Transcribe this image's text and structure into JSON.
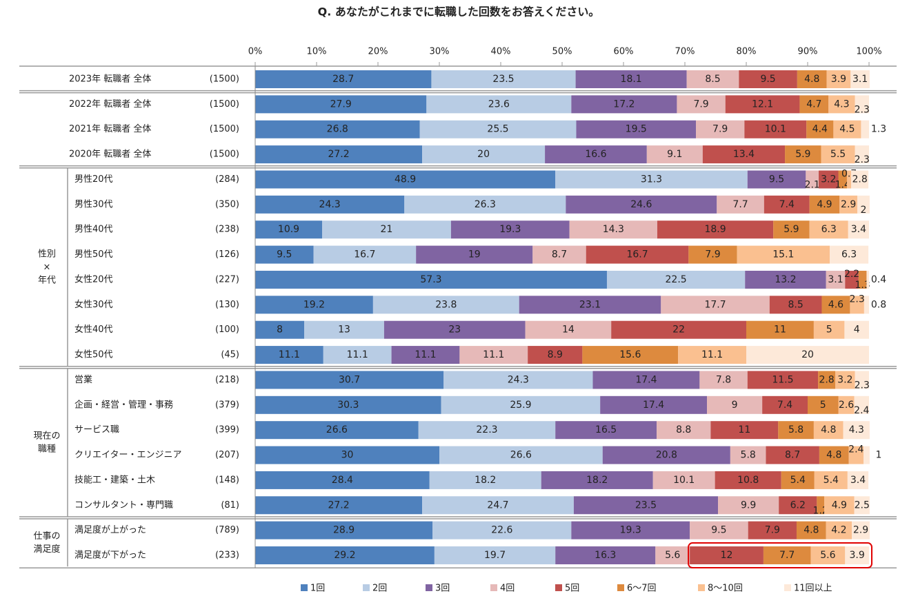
{
  "chart_data": {
    "type": "bar",
    "orientation": "horizontal",
    "stacked": true,
    "title": "Q.  あなたがこれまでに転職した回数をお答えください。",
    "xlim": [
      0,
      100
    ],
    "xticks": [
      {
        "value": 0,
        "label": "0%"
      },
      {
        "value": 10,
        "label": "10%"
      },
      {
        "value": 20,
        "label": "20%"
      },
      {
        "value": 30,
        "label": "30%"
      },
      {
        "value": 40,
        "label": "40%"
      },
      {
        "value": 50,
        "label": "50%"
      },
      {
        "value": 60,
        "label": "60%"
      },
      {
        "value": 70,
        "label": "70%"
      },
      {
        "value": 80,
        "label": "80%"
      },
      {
        "value": 90,
        "label": "90%"
      },
      {
        "value": 100,
        "label": "100%"
      }
    ],
    "groups": [
      {
        "label": null,
        "categories": [
          "2023年 転職者 全体"
        ],
        "n": [
          "(1500)"
        ]
      },
      {
        "label": null,
        "categories": [
          "2022年 転職者 全体",
          "2021年 転職者 全体",
          "2020年 転職者 全体"
        ],
        "n": [
          "(1500)",
          "(1500)",
          "(1500)"
        ]
      },
      {
        "label": [
          "性別",
          "×",
          "年代"
        ],
        "categories": [
          "男性20代",
          "男性30代",
          "男性40代",
          "男性50代",
          "女性20代",
          "女性30代",
          "女性40代",
          "女性50代"
        ],
        "n": [
          "(284)",
          "(350)",
          "(238)",
          "(126)",
          "(227)",
          "(130)",
          "(100)",
          "(45)"
        ]
      },
      {
        "label": [
          "現在の",
          "職種"
        ],
        "categories": [
          "営業",
          "企画・経営・管理・事務",
          "サービス職",
          "クリエイター・エンジニア",
          "技能工・建築・土木",
          "コンサルタント・専門職"
        ],
        "n": [
          "(218)",
          "(379)",
          "(399)",
          "(207)",
          "(148)",
          "(81)"
        ]
      },
      {
        "label": [
          "仕事の",
          "満足度"
        ],
        "categories": [
          "満足度が上がった",
          "満足度が下がった"
        ],
        "n": [
          "(789)",
          "(233)"
        ]
      }
    ],
    "series": [
      {
        "name": "1回",
        "color": "#4f81bd",
        "values": [
          [
            28.7
          ],
          [
            27.9,
            26.8,
            27.2
          ],
          [
            48.9,
            24.3,
            10.9,
            9.5,
            57.3,
            19.2,
            8.0,
            11.1
          ],
          [
            30.7,
            30.3,
            26.6,
            30.0,
            28.4,
            27.2
          ],
          [
            28.9,
            29.2
          ]
        ]
      },
      {
        "name": "2回",
        "color": "#b8cce4",
        "values": [
          [
            23.5
          ],
          [
            23.6,
            25.5,
            20.0
          ],
          [
            31.3,
            26.3,
            21.0,
            16.7,
            22.5,
            23.8,
            13.0,
            11.1
          ],
          [
            24.3,
            25.9,
            22.3,
            26.6,
            18.2,
            24.7
          ],
          [
            22.6,
            19.7
          ]
        ]
      },
      {
        "name": "3回",
        "color": "#8064a2",
        "values": [
          [
            18.1
          ],
          [
            17.2,
            19.5,
            16.6
          ],
          [
            9.5,
            24.6,
            19.3,
            19.0,
            13.2,
            23.1,
            23.0,
            11.1
          ],
          [
            17.4,
            17.4,
            16.5,
            20.8,
            18.2,
            23.5
          ],
          [
            19.3,
            16.3
          ]
        ]
      },
      {
        "name": "4回",
        "color": "#e6b9b8",
        "values": [
          [
            8.5
          ],
          [
            7.9,
            7.9,
            9.1
          ],
          [
            2.1,
            7.7,
            14.3,
            8.7,
            3.1,
            17.7,
            14.0,
            11.1
          ],
          [
            7.8,
            9.0,
            8.8,
            5.8,
            10.1,
            9.9
          ],
          [
            9.5,
            5.6
          ]
        ]
      },
      {
        "name": "5回",
        "color": "#c0504d",
        "values": [
          [
            9.5
          ],
          [
            12.1,
            10.1,
            13.4
          ],
          [
            3.2,
            7.4,
            18.9,
            16.7,
            2.2,
            8.5,
            22.0,
            8.9
          ],
          [
            11.5,
            7.4,
            11.0,
            8.7,
            10.8,
            6.2
          ],
          [
            7.9,
            12.0
          ]
        ]
      },
      {
        "name": "6～7回",
        "color": "#dd8a3e",
        "values": [
          [
            4.8
          ],
          [
            4.7,
            4.4,
            5.9
          ],
          [
            1.4,
            4.9,
            5.9,
            7.9,
            1.3,
            4.6,
            11.0,
            15.6
          ],
          [
            2.8,
            5.0,
            5.8,
            4.8,
            5.4,
            1.2
          ],
          [
            4.8,
            7.7
          ]
        ]
      },
      {
        "name": "8～10回",
        "color": "#fac090",
        "values": [
          [
            3.9
          ],
          [
            4.3,
            4.5,
            5.5
          ],
          [
            0.7,
            2.9,
            6.3,
            15.1,
            null,
            2.3,
            5.0,
            11.1
          ],
          [
            3.2,
            2.6,
            4.8,
            2.4,
            5.4,
            4.9
          ],
          [
            4.2,
            5.6
          ]
        ]
      },
      {
        "name": "11回以上",
        "color": "#fde9d9",
        "values": [
          [
            3.1
          ],
          [
            2.3,
            1.3,
            2.3
          ],
          [
            2.8,
            2.0,
            3.4,
            6.3,
            0.4,
            0.8,
            4.0,
            20.0
          ],
          [
            2.3,
            2.4,
            4.3,
            1.0,
            3.4,
            2.5
          ],
          [
            2.9,
            3.9
          ]
        ]
      }
    ]
  }
}
